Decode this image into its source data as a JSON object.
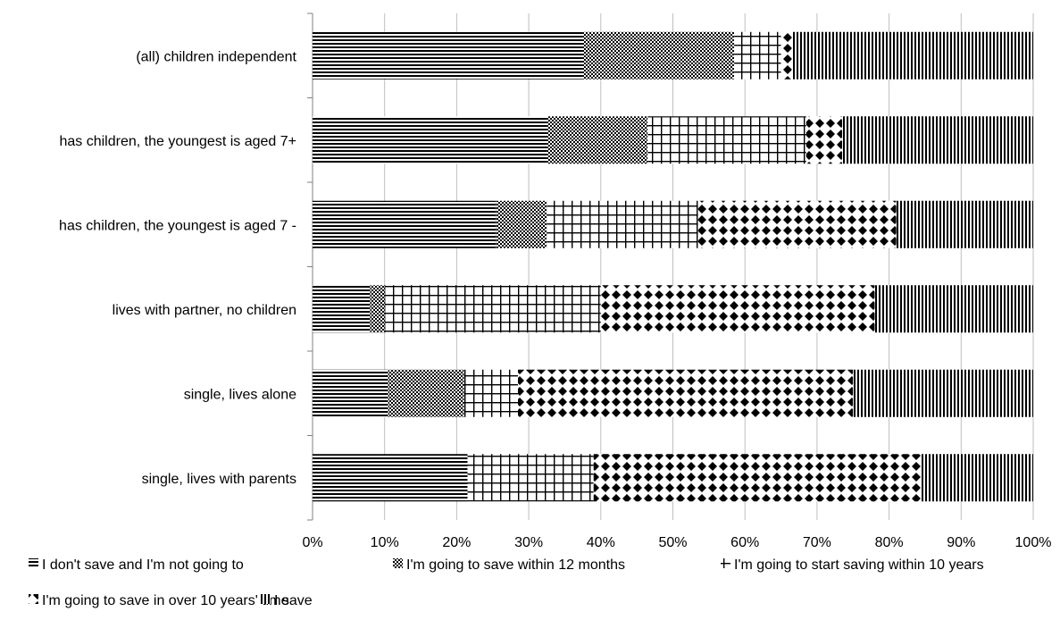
{
  "chart_data": {
    "type": "bar",
    "orientation": "horizontal",
    "stacked": true,
    "normalized": true,
    "categories": [
      "(all) children independent",
      "has children, the youngest is aged 7+",
      "has children, the youngest is aged 7 -",
      "lives with partner, no children",
      "single, lives alone",
      "single, lives with parents"
    ],
    "series": [
      {
        "name": "I don't save and I'm not going to",
        "pattern": "horizontal-lines",
        "values": [
          37.5,
          32.5,
          25.5,
          8.0,
          10.5,
          21.5
        ]
      },
      {
        "name": "I'm going to save within 12 months",
        "pattern": "checker",
        "values": [
          21.0,
          14.0,
          7.0,
          2.0,
          10.5,
          0.0
        ]
      },
      {
        "name": "I'm going to start saving within 10 years",
        "pattern": "grid",
        "values": [
          6.5,
          22.0,
          21.0,
          30.0,
          7.5,
          17.5
        ]
      },
      {
        "name": "I'm going to save in over 10 years' time",
        "pattern": "diamonds",
        "values": [
          1.5,
          5.0,
          27.5,
          38.0,
          46.5,
          45.5
        ]
      },
      {
        "name": "I save",
        "pattern": "vertical-lines",
        "values": [
          33.5,
          26.5,
          19.0,
          22.0,
          25.0,
          15.5
        ]
      }
    ],
    "xticks": [
      "0%",
      "10%",
      "20%",
      "30%",
      "40%",
      "50%",
      "60%",
      "70%",
      "80%",
      "90%",
      "100%"
    ],
    "xlim": [
      0,
      100
    ],
    "grid": "vertical",
    "legend": "bottom",
    "colors": {
      "fill": "#000000",
      "background": "#ffffff",
      "grid": "#bfbfbf",
      "axis": "#808080"
    }
  }
}
